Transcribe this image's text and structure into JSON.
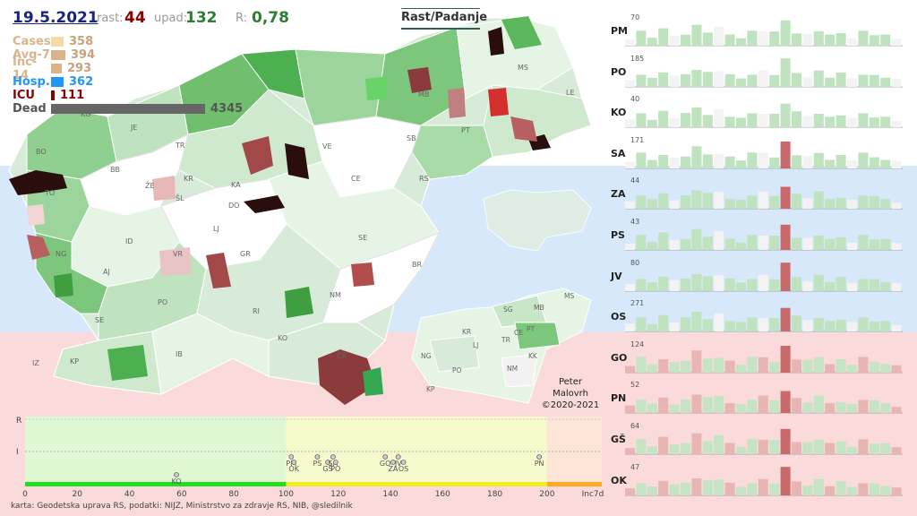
{
  "header": {
    "date": "19.5.2021",
    "rast_label": "rast:",
    "rast_value": "44",
    "upad_label": "upad:",
    "upad_value": "132",
    "r_label": "R:",
    "r_value": "0,78",
    "toggle_label": "Rast/Padanje"
  },
  "stats": [
    {
      "label": "Cases",
      "value": "358",
      "color": "#f5d9a8",
      "fraction": 0.082
    },
    {
      "label": "Avg-7",
      "value": "394",
      "color": "#d9b48a",
      "fraction": 0.091
    },
    {
      "label": "Inc-14",
      "value": "293",
      "color": "#d9b48a",
      "fraction": 0.067
    },
    {
      "label": "Hosp.",
      "value": "362",
      "color": "#2196f3",
      "fraction": 0.083
    },
    {
      "label": "ICU",
      "value": "111",
      "color": "#8b0000",
      "fraction": 0.026
    },
    {
      "label": "Dead",
      "value": "4345",
      "color": "#666666",
      "fraction": 1.0
    }
  ],
  "stat_label_colors": [
    "#d9b48a",
    "#d9b48a",
    "#d9b48a",
    "#2196f3",
    "#8b0000",
    "#555555"
  ],
  "map_labels": [
    "PM",
    "MS",
    "MB",
    "PT",
    "LE",
    "KG",
    "JE",
    "BO",
    "TR",
    "SB",
    "VE",
    "BB",
    "ŽE",
    "KR",
    "KA",
    "CE",
    "RS",
    "TO",
    "ŠL",
    "DO",
    "LJ",
    "SE",
    "ID",
    "GR",
    "VR",
    "NG",
    "BR",
    "AJ",
    "NM",
    "PO",
    "RI",
    "SE",
    "KO",
    "IZ",
    "KP",
    "IB",
    "ČR"
  ],
  "inset_labels": [
    "MS",
    "MB",
    "SG",
    "PT",
    "CE",
    "TR",
    "KR",
    "LJ",
    "KK",
    "NG",
    "PO",
    "NM",
    "KP"
  ],
  "credit": [
    "Peter",
    "Malovrh",
    "©2020-2021"
  ],
  "strip": {
    "y_labels": [
      "R",
      "I"
    ],
    "x_ticks": [
      "0",
      "20",
      "40",
      "60",
      "80",
      "100",
      "120",
      "140",
      "160",
      "180",
      "200"
    ],
    "x_axis_end": "Inc7d",
    "points": [
      {
        "label": "KO",
        "x": 58
      },
      {
        "label": "PM",
        "x": 102
      },
      {
        "label": "OK",
        "x": 103
      },
      {
        "label": "PS",
        "x": 112
      },
      {
        "label": "GŠ",
        "x": 116
      },
      {
        "label": "SA",
        "x": 118
      },
      {
        "label": "PO",
        "x": 119
      },
      {
        "label": "GO",
        "x": 138
      },
      {
        "label": "ZA",
        "x": 141
      },
      {
        "label": "JV",
        "x": 143
      },
      {
        "label": "OS",
        "x": 145
      },
      {
        "label": "PN",
        "x": 197
      }
    ]
  },
  "regions": [
    {
      "label": "PM",
      "max": "70"
    },
    {
      "label": "PO",
      "max": "185"
    },
    {
      "label": "KO",
      "max": "40"
    },
    {
      "label": "SA",
      "max": "171"
    },
    {
      "label": "ZA",
      "max": "44"
    },
    {
      "label": "PS",
      "max": "43"
    },
    {
      "label": "JV",
      "max": "80"
    },
    {
      "label": "OS",
      "max": "271"
    },
    {
      "label": "GO",
      "max": "124"
    },
    {
      "label": "PN",
      "max": "52"
    },
    {
      "label": "GŠ",
      "max": "64"
    },
    {
      "label": "OK",
      "max": "47"
    }
  ],
  "footer": "karta: Geodetska uprava RS,  podatki: NIJZ, Ministrstvo za zdravje RS, NIB, @sledilnik"
}
